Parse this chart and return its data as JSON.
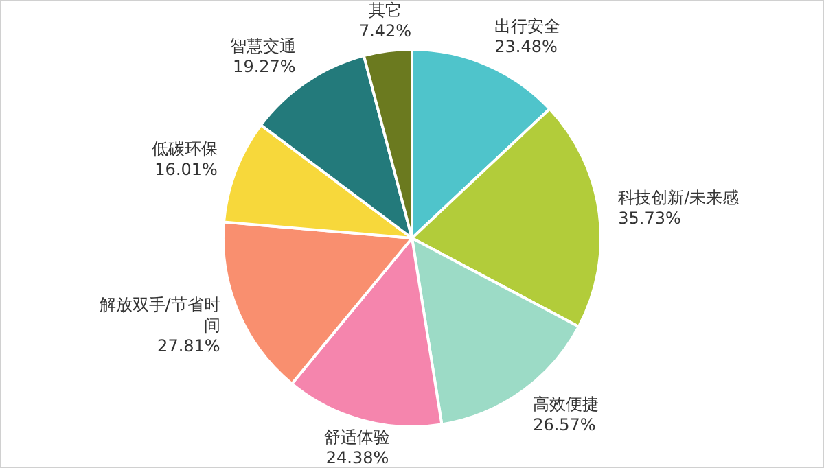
{
  "chart_data": {
    "type": "pie",
    "categories": [
      "出行安全",
      "科技创新/未来感",
      "高效便捷",
      "舒适体验",
      "解放双手/节省时间",
      "低碳环保",
      "智慧交通",
      "其它"
    ],
    "values": [
      23.48,
      35.73,
      26.57,
      24.38,
      27.81,
      16.01,
      19.27,
      7.42
    ],
    "value_labels": [
      "23.48%",
      "35.73%",
      "26.57%",
      "24.38%",
      "27.81%",
      "16.01%",
      "19.27%",
      "7.42%"
    ],
    "colors": [
      "#4fc4cb",
      "#b2cc3a",
      "#9cdbc6",
      "#f585ad",
      "#f98f6f",
      "#f7d83b",
      "#237a7b",
      "#6b7a1f"
    ],
    "legend": false
  }
}
